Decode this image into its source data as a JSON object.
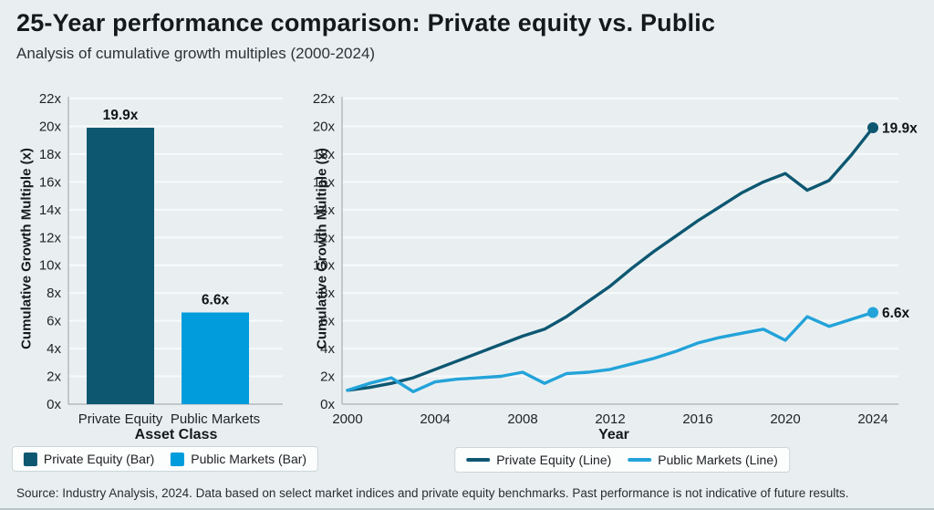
{
  "header": {
    "title": "25-Year performance comparison: Private equity vs. Public",
    "subtitle": "Analysis of cumulative growth multiples (2000-2024)"
  },
  "footer": {
    "source": "Source: Industry Analysis, 2024. Data based on select market indices and private equity benchmarks. Past performance is not indicative of future results."
  },
  "colors": {
    "background": "#e9eff1",
    "private_equity": "#0d5771",
    "public_markets": "#019cdc",
    "public_markets_line": "#23a3d9",
    "grid": "#f6fafa",
    "spine": "#b3bcbf",
    "tick_text": "#1d2327",
    "label_text": "#101417"
  },
  "chart_data": [
    {
      "type": "bar",
      "title": "",
      "xlabel": "Asset Class",
      "ylabel": "Cumulative Growth Multiple (x)",
      "categories": [
        "Private Equity",
        "Public Markets"
      ],
      "values": [
        19.9,
        6.6
      ],
      "bar_labels": [
        "19.9x",
        "6.6x"
      ],
      "bar_colors": [
        "#0d5771",
        "#019cdc"
      ],
      "ylim": [
        0,
        22
      ],
      "ytick_step": 2,
      "ytick_suffix": "x",
      "grid": true,
      "legend_position": "bottom",
      "legend": [
        {
          "label": "Private Equity (Bar)",
          "color": "#0d5771",
          "swatch": "box"
        },
        {
          "label": "Public Markets (Bar)",
          "color": "#019cdc",
          "swatch": "box"
        }
      ]
    },
    {
      "type": "line",
      "title": "",
      "xlabel": "Year",
      "ylabel": "Cumulative Growth Multiple (x)",
      "x": [
        2000,
        2001,
        2002,
        2003,
        2004,
        2005,
        2006,
        2007,
        2008,
        2009,
        2010,
        2011,
        2012,
        2013,
        2014,
        2015,
        2016,
        2017,
        2018,
        2019,
        2020,
        2021,
        2022,
        2023,
        2024
      ],
      "series": [
        {
          "name": "Private Equity (Line)",
          "color": "#0d5771",
          "values": [
            1.0,
            1.2,
            1.5,
            1.9,
            2.5,
            3.1,
            3.7,
            4.3,
            4.9,
            5.4,
            6.3,
            7.4,
            8.5,
            9.8,
            11.0,
            12.1,
            13.2,
            14.2,
            15.2,
            16.0,
            16.6,
            15.4,
            16.1,
            17.9,
            19.9
          ],
          "end_label": "19.9x",
          "end_marker": true
        },
        {
          "name": "Public Markets (Line)",
          "color": "#23a3d9",
          "values": [
            1.0,
            1.5,
            1.9,
            0.9,
            1.6,
            1.8,
            1.9,
            2.0,
            2.3,
            1.5,
            2.2,
            2.3,
            2.5,
            2.9,
            3.3,
            3.8,
            4.4,
            4.8,
            5.1,
            5.4,
            4.6,
            6.3,
            5.6,
            6.1,
            6.6
          ],
          "end_label": "6.6x",
          "end_marker": true
        }
      ],
      "xticks": [
        2000,
        2004,
        2008,
        2012,
        2016,
        2020,
        2024
      ],
      "ylim": [
        0,
        22
      ],
      "ytick_step": 2,
      "ytick_suffix": "x",
      "grid": true,
      "legend_position": "bottom",
      "legend": [
        {
          "label": "Private Equity (Line)",
          "color": "#0d5771",
          "swatch": "line"
        },
        {
          "label": "Public Markets (Line)",
          "color": "#23a3d9",
          "swatch": "line"
        }
      ]
    }
  ]
}
